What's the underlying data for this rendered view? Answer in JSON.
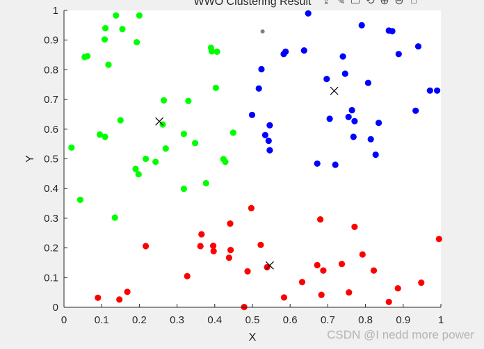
{
  "window": {
    "title": "WWO Clustering Result",
    "toolbar_icons": [
      "export-icon",
      "brush-icon",
      "datatip-icon",
      "rotate-icon",
      "zoom-in-icon",
      "zoom-out-icon",
      "home-icon"
    ]
  },
  "watermark": "CSDN @I nedd more power",
  "chart_data": {
    "type": "scatter",
    "title": "WWO Clustering Result",
    "xlabel": "X",
    "ylabel": "Y",
    "xlim": [
      0,
      1
    ],
    "ylim": [
      0,
      1
    ],
    "xticks": [
      "0",
      "0.1",
      "0.2",
      "0.3",
      "0.4",
      "0.5",
      "0.6",
      "0.7",
      "0.8",
      "0.9",
      "1"
    ],
    "yticks": [
      "0",
      "0.1",
      "0.2",
      "0.3",
      "0.4",
      "0.5",
      "0.6",
      "0.7",
      "0.8",
      "0.9",
      "1"
    ],
    "grid": false,
    "series": [
      {
        "color": "#00ff00",
        "marker": "filled-circle",
        "points": [
          [
            0.138,
            0.983
          ],
          [
            0.2,
            0.983
          ],
          [
            0.11,
            0.94
          ],
          [
            0.155,
            0.937
          ],
          [
            0.108,
            0.902
          ],
          [
            0.193,
            0.893
          ],
          [
            0.055,
            0.843
          ],
          [
            0.062,
            0.846
          ],
          [
            0.118,
            0.817
          ],
          [
            0.39,
            0.874
          ],
          [
            0.392,
            0.862
          ],
          [
            0.406,
            0.861
          ],
          [
            0.403,
            0.739
          ],
          [
            0.265,
            0.697
          ],
          [
            0.33,
            0.695
          ],
          [
            0.15,
            0.63
          ],
          [
            0.262,
            0.616
          ],
          [
            0.095,
            0.582
          ],
          [
            0.109,
            0.574
          ],
          [
            0.318,
            0.584
          ],
          [
            0.449,
            0.588
          ],
          [
            0.348,
            0.553
          ],
          [
            0.02,
            0.538
          ],
          [
            0.27,
            0.535
          ],
          [
            0.217,
            0.5
          ],
          [
            0.243,
            0.49
          ],
          [
            0.423,
            0.499
          ],
          [
            0.428,
            0.49
          ],
          [
            0.19,
            0.466
          ],
          [
            0.198,
            0.448
          ],
          [
            0.377,
            0.418
          ],
          [
            0.318,
            0.399
          ],
          [
            0.043,
            0.362
          ],
          [
            0.135,
            0.302
          ]
        ]
      },
      {
        "color": "#0000ff",
        "marker": "filled-circle",
        "points": [
          [
            0.648,
            0.99
          ],
          [
            0.79,
            0.95
          ],
          [
            0.862,
            0.932
          ],
          [
            0.871,
            0.93
          ],
          [
            0.583,
            0.853
          ],
          [
            0.588,
            0.861
          ],
          [
            0.637,
            0.865
          ],
          [
            0.74,
            0.845
          ],
          [
            0.888,
            0.853
          ],
          [
            0.94,
            0.879
          ],
          [
            0.524,
            0.802
          ],
          [
            0.746,
            0.787
          ],
          [
            0.697,
            0.769
          ],
          [
            0.807,
            0.756
          ],
          [
            0.517,
            0.737
          ],
          [
            0.971,
            0.73
          ],
          [
            0.99,
            0.73
          ],
          [
            0.764,
            0.664
          ],
          [
            0.933,
            0.662
          ],
          [
            0.499,
            0.648
          ],
          [
            0.705,
            0.635
          ],
          [
            0.755,
            0.641
          ],
          [
            0.771,
            0.627
          ],
          [
            0.835,
            0.621
          ],
          [
            0.546,
            0.613
          ],
          [
            0.534,
            0.58
          ],
          [
            0.768,
            0.574
          ],
          [
            0.814,
            0.566
          ],
          [
            0.543,
            0.561
          ],
          [
            0.546,
            0.529
          ],
          [
            0.827,
            0.514
          ],
          [
            0.672,
            0.484
          ],
          [
            0.72,
            0.48
          ]
        ]
      },
      {
        "color": "#ff0000",
        "marker": "filled-circle",
        "points": [
          [
            0.995,
            0.23
          ],
          [
            0.497,
            0.334
          ],
          [
            0.68,
            0.296
          ],
          [
            0.441,
            0.282
          ],
          [
            0.771,
            0.271
          ],
          [
            0.365,
            0.246
          ],
          [
            0.362,
            0.206
          ],
          [
            0.396,
            0.207
          ],
          [
            0.522,
            0.21
          ],
          [
            0.217,
            0.206
          ],
          [
            0.397,
            0.189
          ],
          [
            0.442,
            0.193
          ],
          [
            0.438,
            0.167
          ],
          [
            0.792,
            0.178
          ],
          [
            0.737,
            0.146
          ],
          [
            0.672,
            0.142
          ],
          [
            0.539,
            0.135
          ],
          [
            0.487,
            0.121
          ],
          [
            0.688,
            0.124
          ],
          [
            0.822,
            0.124
          ],
          [
            0.327,
            0.105
          ],
          [
            0.632,
            0.085
          ],
          [
            0.948,
            0.083
          ],
          [
            0.886,
            0.064
          ],
          [
            0.756,
            0.05
          ],
          [
            0.168,
            0.052
          ],
          [
            0.683,
            0.042
          ],
          [
            0.584,
            0.033
          ],
          [
            0.09,
            0.032
          ],
          [
            0.147,
            0.026
          ],
          [
            0.862,
            0.018
          ],
          [
            0.478,
            0.001
          ]
        ]
      },
      {
        "color": "#808080",
        "marker": "small-dot",
        "points": [
          [
            0.527,
            0.929
          ]
        ]
      }
    ],
    "centroids": {
      "marker": "x",
      "color": "#000000",
      "points": [
        [
          0.253,
          0.626
        ],
        [
          0.717,
          0.729
        ],
        [
          0.546,
          0.141
        ]
      ]
    }
  }
}
